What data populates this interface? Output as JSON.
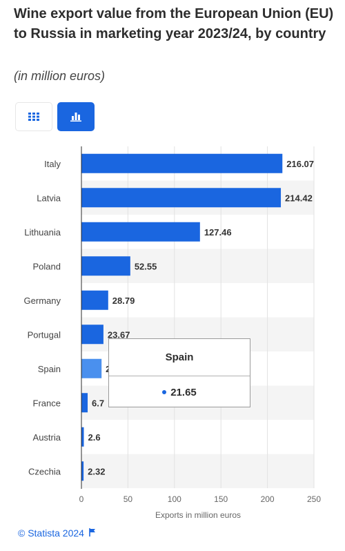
{
  "header": {
    "title": "Wine export value from the European Union (EU) to Russia in marketing year 2023/24, by country",
    "subtitle": "(in million euros)"
  },
  "view_toggle": {
    "table_icon": "table-grid-icon",
    "chart_icon": "bar-chart-icon",
    "active": "chart"
  },
  "colors": {
    "accent": "#1a66e0",
    "highlight": "#4a90ee",
    "band": "#f4f4f4"
  },
  "tooltip": {
    "title": "Spain",
    "value": "21.65"
  },
  "footer": {
    "credit": "© Statista 2024",
    "flag_icon": "flag-icon"
  },
  "chart_data": {
    "type": "bar",
    "orientation": "horizontal",
    "categories": [
      "Italy",
      "Latvia",
      "Lithuania",
      "Poland",
      "Germany",
      "Portugal",
      "Spain",
      "France",
      "Austria",
      "Czechia"
    ],
    "values": [
      216.07,
      214.42,
      127.46,
      52.55,
      28.79,
      23.67,
      21.65,
      6.7,
      2.6,
      2.32
    ],
    "value_labels": [
      "216.07",
      "214.42",
      "127.46",
      "52.55",
      "28.79",
      "23.67",
      "21.65",
      "6.7",
      "2.6",
      "2.32"
    ],
    "highlighted": "Spain",
    "xlabel": "Exports in million euros",
    "xlim": [
      0,
      250
    ],
    "xticks": [
      "0",
      "50",
      "100",
      "150",
      "200",
      "250"
    ],
    "grid": true
  }
}
